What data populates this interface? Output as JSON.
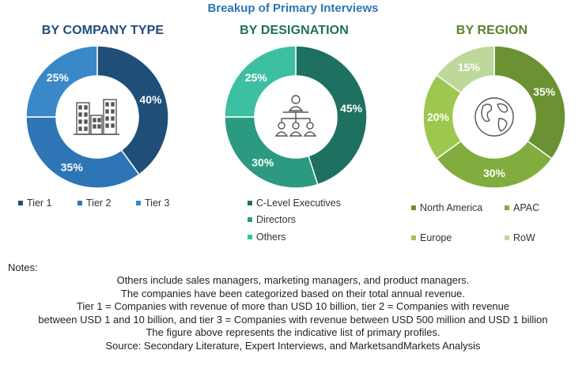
{
  "title": "Breakup of Primary Interviews",
  "chart_data": [
    {
      "type": "pie",
      "title": "BY COMPANY TYPE",
      "title_color": "#1f4e79",
      "categories": [
        "Tier 1",
        "Tier 2",
        "Tier 3"
      ],
      "values": [
        40,
        35,
        25
      ],
      "labels": [
        "40%",
        "35%",
        "25%"
      ],
      "colors": [
        "#1f4e79",
        "#2e75b6",
        "#3b88c8"
      ],
      "center_icon": "buildings-icon"
    },
    {
      "type": "pie",
      "title": "BY DESIGNATION",
      "title_color": "#1f6f5e",
      "categories": [
        "C-Level Executives",
        "Directors",
        "Others"
      ],
      "values": [
        45,
        30,
        25
      ],
      "labels": [
        "45%",
        "30%",
        "25%"
      ],
      "colors": [
        "#1e7060",
        "#2b9a80",
        "#3dbfa2"
      ],
      "center_icon": "org-chart-people-icon"
    },
    {
      "type": "pie",
      "title": "BY REGION",
      "title_color": "#5d7f2a",
      "categories": [
        "North America",
        "APAC",
        "Europe",
        "RoW"
      ],
      "values": [
        35,
        30,
        20,
        15
      ],
      "labels": [
        "35%",
        "30%",
        "20%",
        "15%"
      ],
      "colors": [
        "#6a9232",
        "#80ad3e",
        "#9dc74f",
        "#bdd89a"
      ],
      "center_icon": "globe-icon"
    }
  ],
  "notes": {
    "label": "Notes:",
    "lines": [
      "Others include sales managers, marketing managers, and product managers.",
      "The companies have been categorized based on their total annual revenue.",
      "Tier 1 = Companies with revenue of more than USD 10 billion, tier 2 = Companies with revenue",
      "between USD 1 and 10 billion, and tier 3 = Companies with revenue between USD 500 million and USD 1 billion",
      "The figure above represents the indicative list of primary profiles.",
      "Source: Secondary Literature, Expert Interviews, and MarketsandMarkets Analysis"
    ]
  }
}
